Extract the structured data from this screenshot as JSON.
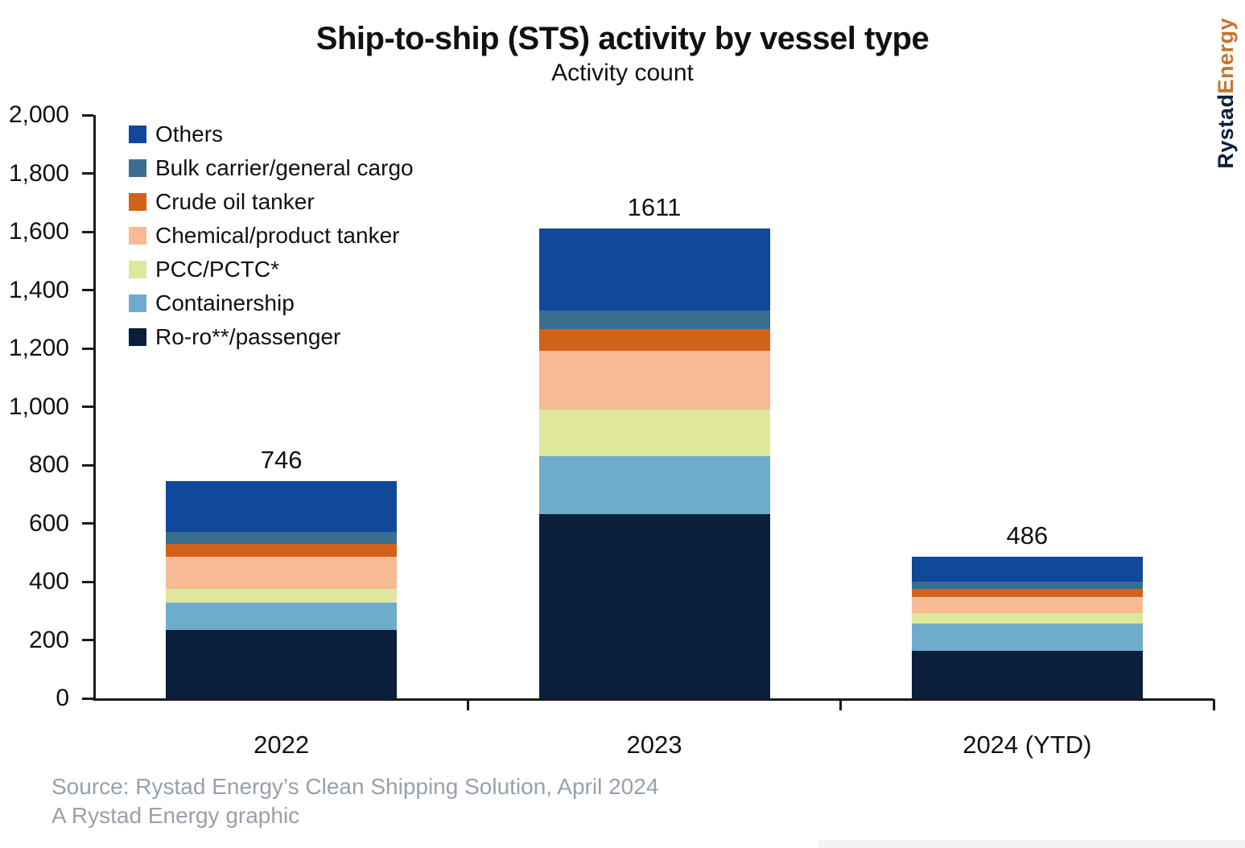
{
  "header": {
    "title": "Ship-to-ship (STS) activity by vessel type",
    "subtitle": "Activity count"
  },
  "logo": {
    "part1": "Rystad",
    "part2": "Energy",
    "part1_color": "#0A1F3C",
    "part2_color": "#C8742E"
  },
  "footer": {
    "source_line1": "Source: Rystad Energy’s Clean Shipping Solution, April 2024",
    "source_line2": "A Rystad Energy graphic"
  },
  "chart_data": {
    "type": "bar",
    "stacked": true,
    "title": "Ship-to-ship (STS) activity by vessel type",
    "subtitle": "Activity count",
    "categories": [
      "2022",
      "2023",
      "2024 (YTD)"
    ],
    "totals": [
      746,
      1611,
      486
    ],
    "series": [
      {
        "name": "Others",
        "color": "#114899",
        "values": [
          174,
          280,
          85
        ]
      },
      {
        "name": "Bulk carrier/general cargo",
        "color": "#3A6E91",
        "values": [
          42,
          64,
          26
        ]
      },
      {
        "name": "Crude oil tanker",
        "color": "#D2611A",
        "values": [
          45,
          76,
          28
        ]
      },
      {
        "name": "Chemical/product tanker",
        "color": "#F6BB94",
        "values": [
          110,
          201,
          54
        ]
      },
      {
        "name": "PCC/PCTC*",
        "color": "#DFE79B",
        "values": [
          48,
          160,
          37
        ]
      },
      {
        "name": "Containership",
        "color": "#6FACCC",
        "values": [
          92,
          199,
          92
        ]
      },
      {
        "name": "Ro-ro**/passenger",
        "color": "#0B1E3C",
        "values": [
          235,
          631,
          164
        ]
      }
    ],
    "stack_order_note": "series listed top-to-bottom as in legend; stacking bottom-up is reverse of this list",
    "xlabel": "",
    "ylabel": "",
    "ylim": [
      0,
      2000
    ],
    "ytick_step": 200,
    "grid": false,
    "legend_position": "top-left",
    "axis_color": "#1a1a1a"
  }
}
